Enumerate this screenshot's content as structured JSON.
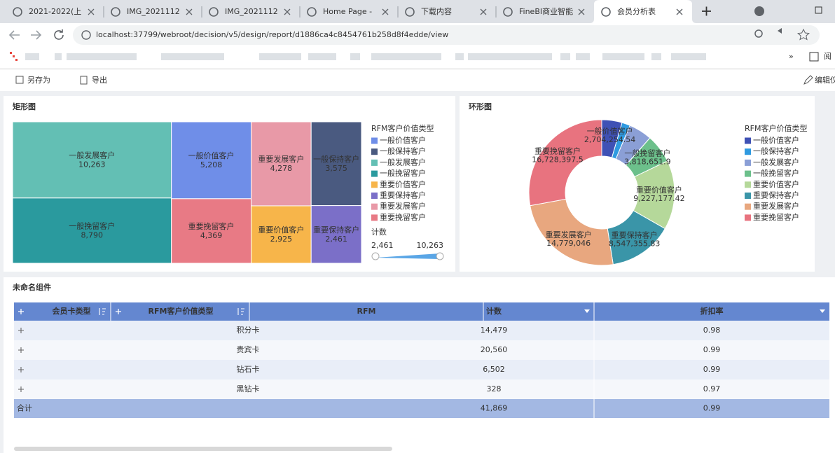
{
  "browser": {
    "tabs": [
      "2021-2022(上",
      "IMG_2021112",
      "IMG_2021112",
      "Home Page -",
      "下载内容",
      "FineBI商业智能",
      "会员分析表"
    ],
    "url": "localhost:37799/webroot/decision/v5/design/report/d1886ca4c8454761b258d8f4edde/view",
    "reading_list": "阅"
  },
  "toolbar": {
    "save_as": "另存为",
    "export": "导出",
    "edit": "编辑仪"
  },
  "chart_data": [
    {
      "type": "treemap",
      "title": "矩形图",
      "legend_title": "RFM客户价值类型",
      "legend": [
        "一般价值客户",
        "一般保持客户",
        "一般发展客户",
        "一般挽留客户",
        "重要价值客户",
        "重要保持客户",
        "重要发展客户",
        "重要挽留客户"
      ],
      "categories": [
        "一般发展客户",
        "一般挽留客户",
        "一般价值客户",
        "重要挽留客户",
        "重要发展客户",
        "重要价值客户",
        "一般保持客户",
        "重要保持客户"
      ],
      "values": [
        10263,
        8790,
        5208,
        4369,
        4278,
        2925,
        3575,
        2461
      ],
      "value_labels": [
        "10,263",
        "8,790",
        "5,208",
        "4,369",
        "4,278",
        "2,925",
        "3,575",
        "2,461"
      ],
      "colors": [
        "#63bfb4",
        "#2a9a9e",
        "#6f8ee8",
        "#e87a85",
        "#e899a7",
        "#f7b54a",
        "#4a5a80",
        "#7b6fc8"
      ],
      "color_scale": {
        "title": "计数",
        "range": [
          {
            "value": 2461,
            "label": "2,461"
          },
          {
            "value": 10263,
            "label": "10,263"
          }
        ]
      }
    },
    {
      "type": "donut",
      "title": "环形图",
      "legend_title": "RFM客户价值类型",
      "categories": [
        "一般价值客户",
        "一般保持客户",
        "一般发展客户",
        "一般挽留客户",
        "重要价值客户",
        "重要保持客户",
        "重要发展客户",
        "重要挽留客户"
      ],
      "values": [
        2704254.54,
        1100000,
        3100000,
        3818651.9,
        9227177.42,
        8547355.83,
        14779046,
        16728397.5
      ],
      "value_labels": [
        "2,704,254.54",
        null,
        null,
        "3,818,651.9",
        "9,227,177.42",
        "8,547,355.83",
        "14,779,046",
        "16,728,397.5"
      ],
      "colors": [
        "#3f51b5",
        "#2f9ae0",
        "#8b9fd6",
        "#6cc08b",
        "#b5d89a",
        "#3a95a8",
        "#e8a77f",
        "#e8737f"
      ]
    }
  ],
  "table": {
    "title": "未命名组件",
    "header": [
      "会员卡类型",
      "RFM客户价值类型",
      "RFM",
      "计数",
      "折扣率"
    ],
    "rows": [
      [
        "积分卡",
        "14,479",
        "0.98"
      ],
      [
        "贵宾卡",
        "20,560",
        "0.99"
      ],
      [
        "钻石卡",
        "6,502",
        "0.99"
      ],
      [
        "黑钻卡",
        "328",
        "0.97"
      ]
    ],
    "total": [
      "合计",
      "41,869",
      "0.99"
    ]
  }
}
